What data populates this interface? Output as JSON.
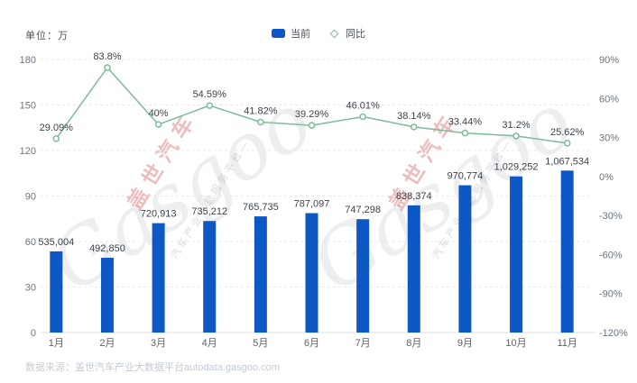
{
  "legend": [
    {
      "label": "当前",
      "type": "bar"
    },
    {
      "label": "同比",
      "type": "line"
    }
  ],
  "chart_data": {
    "type": "bar+line combo",
    "categories": [
      "1月",
      "2月",
      "3月",
      "4月",
      "5月",
      "6月",
      "7月",
      "8月",
      "9月",
      "10月",
      "11月"
    ],
    "series": [
      {
        "name": "当前",
        "type": "bar",
        "axis": "left",
        "values": [
          535004,
          492850,
          720913,
          735212,
          765735,
          787097,
          747298,
          838374,
          970774,
          1029252,
          1067534
        ],
        "labels": [
          "535,004",
          "492,850",
          "720,913",
          "735,212",
          "765,735",
          "787,097",
          "747,298",
          "838,374",
          "970,774",
          "1,029,252",
          "1,067,534"
        ],
        "color": "#0e58c5"
      },
      {
        "name": "同比",
        "type": "line",
        "axis": "right",
        "values": [
          29.09,
          83.8,
          40,
          54.59,
          41.82,
          39.29,
          46.01,
          38.14,
          33.44,
          31.2,
          25.62
        ],
        "labels": [
          "29.09%",
          "83.8%",
          "40%",
          "54.59%",
          "41.82%",
          "39.29%",
          "46.01%",
          "38.14%",
          "33.44%",
          "31.2%",
          "25.62%"
        ],
        "color": "#7dbb99"
      }
    ],
    "left_axis": {
      "title": "单位：万",
      "unit": "万",
      "ticks": [
        "180",
        "150",
        "120",
        "90",
        "60",
        "30",
        "0"
      ],
      "min": 0,
      "max": 180
    },
    "right_axis": {
      "ticks": [
        "90%",
        "60%",
        "30%",
        "0%",
        "-30%",
        "-60%",
        "-90%",
        "-120%"
      ],
      "min": -120,
      "max": 90
    },
    "grid": "horizontal dashed",
    "legend_position": "top center"
  },
  "colors": {
    "bar": "#0e58c5",
    "line": "#7dbb99",
    "grid_line": "#e8eaee",
    "axis_line": "#dcdfe4",
    "axis_text": "#6b7480",
    "value_text": "#3c434c"
  },
  "watermark": {
    "brand_script": "Gasgoo",
    "brand_cn": "盖世汽车",
    "tagline": "汽车产业信息服务平台—"
  },
  "footer": {
    "source_prefix": "数据来源：",
    "source_text": "盖世汽车产业大数据平台autodata.gasgoo.com"
  }
}
